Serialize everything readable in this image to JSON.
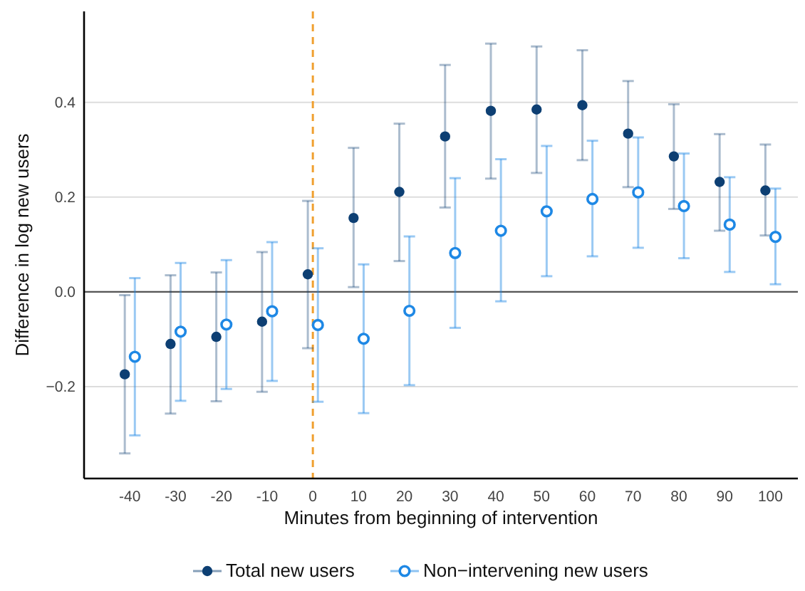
{
  "chart_data": {
    "type": "scatter",
    "xlabel": "Minutes from beginning of intervention",
    "ylabel": "Difference in log new users",
    "xlim": [
      -50,
      106
    ],
    "xticks": [
      -40,
      -30,
      -20,
      -10,
      0,
      10,
      20,
      30,
      40,
      50,
      60,
      70,
      80,
      90,
      100
    ],
    "ylim": [
      -0.394,
      0.592
    ],
    "yticks": [
      {
        "value": -0.2,
        "label": "−0.2"
      },
      {
        "value": 0,
        "label": "0.0"
      },
      {
        "value": 0.2,
        "label": "0.2"
      },
      {
        "value": 0.4,
        "label": "0.4"
      }
    ],
    "grid": "y",
    "legend": "bottom",
    "marker": "circle",
    "ref_lines": [
      {
        "axis": "y",
        "value": 0,
        "color": "#555555",
        "line_style": "solid"
      },
      {
        "axis": "x",
        "value": 0,
        "color": "#f0a030",
        "line_style": "dashed"
      }
    ],
    "series": [
      {
        "name": "Total new users",
        "color": "#0d3f73",
        "x": [
          -41.1,
          -31.1,
          -21.1,
          -11.1,
          -1.1,
          8.9,
          18.9,
          28.9,
          38.9,
          48.9,
          58.9,
          68.9,
          78.9,
          88.9,
          98.9
        ],
        "values": [
          -0.174,
          -0.11,
          -0.095,
          -0.063,
          0.037,
          0.156,
          0.211,
          0.328,
          0.382,
          0.385,
          0.394,
          0.334,
          0.286,
          0.232,
          0.214
        ],
        "errors": [
          [
            -0.341,
            -0.007
          ],
          [
            -0.257,
            0.035
          ],
          [
            -0.231,
            0.041
          ],
          [
            -0.211,
            0.084
          ],
          [
            -0.119,
            0.192
          ],
          [
            0.01,
            0.304
          ],
          [
            0.065,
            0.355
          ],
          [
            0.178,
            0.479
          ],
          [
            0.239,
            0.524
          ],
          [
            0.251,
            0.518
          ],
          [
            0.278,
            0.51
          ],
          [
            0.221,
            0.445
          ],
          [
            0.175,
            0.396
          ],
          [
            0.129,
            0.333
          ],
          [
            0.119,
            0.311
          ]
        ]
      },
      {
        "name": "Non−intervening new users",
        "color": "#1e88e5",
        "x": [
          -38.9,
          -28.9,
          -18.9,
          -8.9,
          1.1,
          11.1,
          21.1,
          31.1,
          41.1,
          51.1,
          61.1,
          71.1,
          81.1,
          91.1,
          101.1
        ],
        "values": [
          -0.137,
          -0.084,
          -0.069,
          -0.041,
          -0.07,
          -0.099,
          -0.04,
          0.082,
          0.129,
          0.17,
          0.196,
          0.21,
          0.181,
          0.142,
          0.116
        ],
        "errors": [
          [
            -0.303,
            0.029
          ],
          [
            -0.23,
            0.061
          ],
          [
            -0.205,
            0.067
          ],
          [
            -0.188,
            0.105
          ],
          [
            -0.232,
            0.092
          ],
          [
            -0.256,
            0.058
          ],
          [
            -0.197,
            0.117
          ],
          [
            -0.076,
            0.24
          ],
          [
            -0.02,
            0.28
          ],
          [
            0.033,
            0.308
          ],
          [
            0.075,
            0.319
          ],
          [
            0.093,
            0.326
          ],
          [
            0.071,
            0.292
          ],
          [
            0.042,
            0.242
          ],
          [
            0.016,
            0.218
          ]
        ]
      }
    ]
  }
}
